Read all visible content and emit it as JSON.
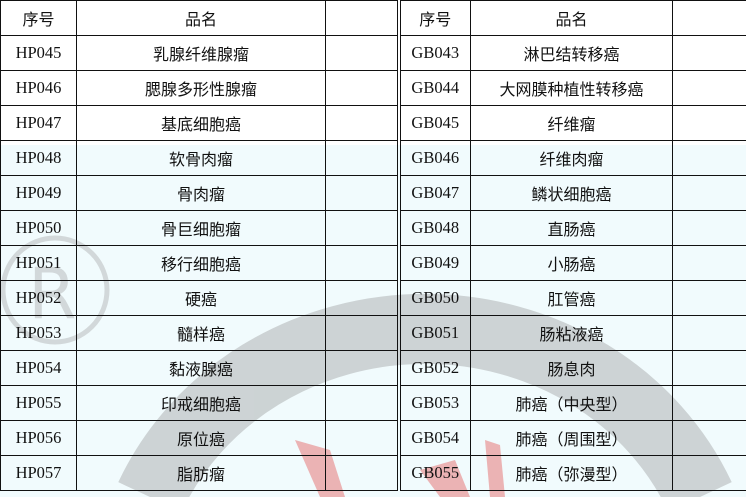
{
  "headers": {
    "no": "序号",
    "name": "品名"
  },
  "left_rows": [
    {
      "no": "HP045",
      "name": "乳腺纤维腺瘤"
    },
    {
      "no": "HP046",
      "name": "腮腺多形性腺瘤"
    },
    {
      "no": "HP047",
      "name": "基底细胞癌"
    },
    {
      "no": "HP048",
      "name": "软骨肉瘤"
    },
    {
      "no": "HP049",
      "name": "骨肉瘤"
    },
    {
      "no": "HP050",
      "name": "骨巨细胞瘤"
    },
    {
      "no": "HP051",
      "name": "移行细胞癌"
    },
    {
      "no": "HP052",
      "name": "硬癌"
    },
    {
      "no": "HP053",
      "name": "髓样癌"
    },
    {
      "no": "HP054",
      "name": "黏液腺癌"
    },
    {
      "no": "HP055",
      "name": "印戒细胞癌"
    },
    {
      "no": "HP056",
      "name": "原位癌"
    },
    {
      "no": "HP057",
      "name": "脂肪瘤"
    }
  ],
  "right_rows": [
    {
      "no": "GB043",
      "name": "淋巴结转移癌"
    },
    {
      "no": "GB044",
      "name": "大网膜种植性转移癌"
    },
    {
      "no": "GB045",
      "name": "纤维瘤"
    },
    {
      "no": "GB046",
      "name": "纤维肉瘤"
    },
    {
      "no": "GB047",
      "name": "鳞状细胞癌"
    },
    {
      "no": "GB048",
      "name": "直肠癌"
    },
    {
      "no": "GB049",
      "name": "小肠癌"
    },
    {
      "no": "GB050",
      "name": "肛管癌"
    },
    {
      "no": "GB051",
      "name": "肠粘液癌"
    },
    {
      "no": "GB052",
      "name": "肠息肉"
    },
    {
      "no": "GB053",
      "name": "肺癌（中央型）"
    },
    {
      "no": "GB054",
      "name": "肺癌（周围型）"
    },
    {
      "no": "GB055",
      "name": "肺癌（弥漫型）"
    }
  ],
  "watermark": {
    "symbol": "®",
    "ring_color": "#bdbdbd",
    "accent_color": "#e05050"
  }
}
